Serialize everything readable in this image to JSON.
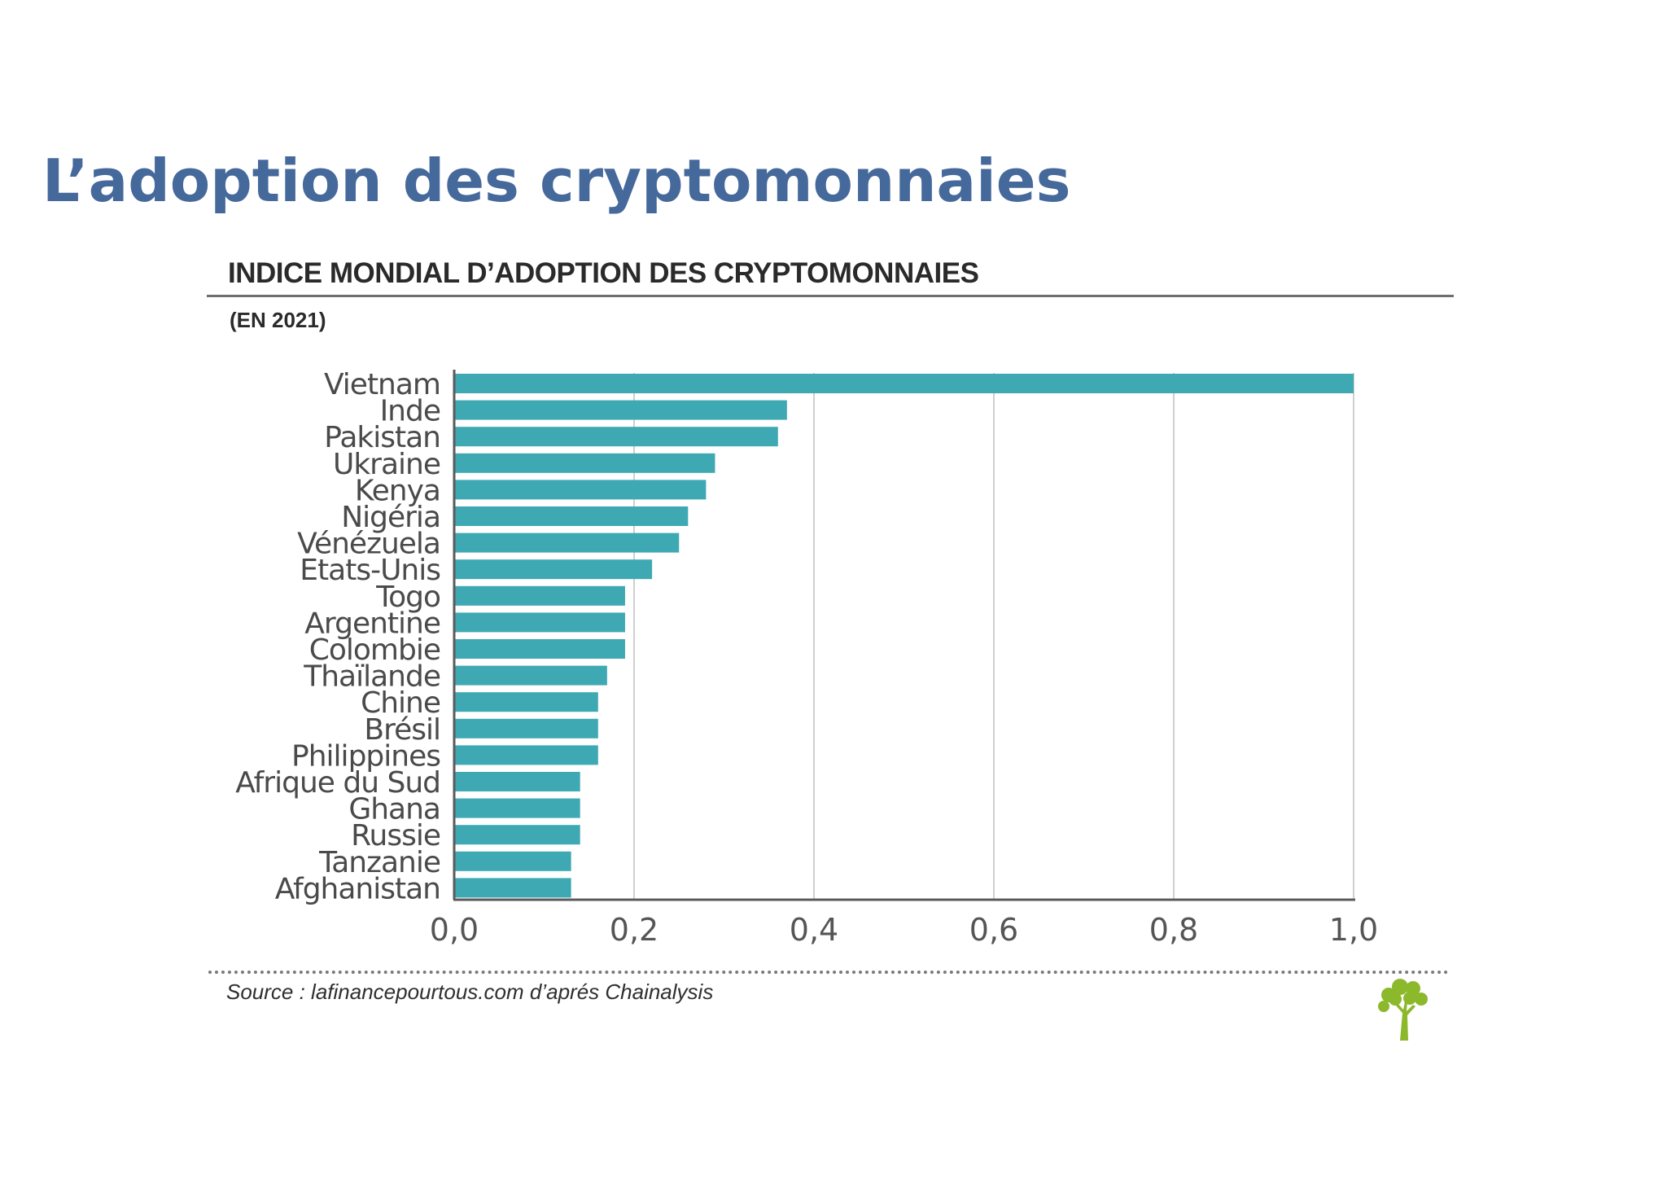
{
  "slide": {
    "title": "L’adoption des cryptomonnaies"
  },
  "source": {
    "text": "Source : lafinancepourtous.com d’aprés Chainalysis"
  },
  "logo": {
    "icon": "tree-icon",
    "color": "#8cb82c"
  },
  "chart_data": {
    "type": "bar",
    "orientation": "horizontal",
    "title": "INDICE MONDIAL D’ADOPTION DES CRYPTOMONNAIES",
    "subtitle": "(EN 2021)",
    "xlabel": "",
    "ylabel": "",
    "xlim": [
      0,
      1
    ],
    "xticks": [
      0,
      0.2,
      0.4,
      0.6,
      0.8,
      1.0
    ],
    "xtick_labels": [
      "0,0",
      "0,2",
      "0,4",
      "0,6",
      "0,8",
      "1,0"
    ],
    "grid": "vertical",
    "bar_color": "#3fa9b3",
    "categories": [
      "Vietnam",
      "Inde",
      "Pakistan",
      "Ukraine",
      "Kenya",
      "Nigéria",
      "Vénézuela",
      "Etats-Unis",
      "Togo",
      "Argentine",
      "Colombie",
      "Thaïlande",
      "Chine",
      "Brésil",
      "Philippines",
      "Afrique du Sud",
      "Ghana",
      "Russie",
      "Tanzanie",
      "Afghanistan"
    ],
    "values": [
      1.0,
      0.37,
      0.36,
      0.29,
      0.28,
      0.26,
      0.25,
      0.22,
      0.19,
      0.19,
      0.19,
      0.17,
      0.16,
      0.16,
      0.16,
      0.14,
      0.14,
      0.14,
      0.13,
      0.13
    ]
  }
}
